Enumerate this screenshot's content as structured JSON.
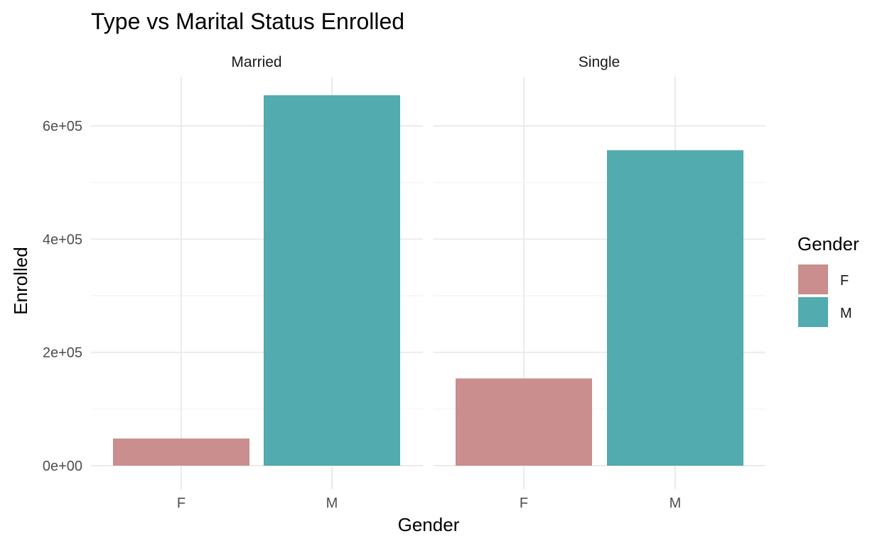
{
  "chart_data": {
    "type": "bar",
    "title": "Type vs Marital Status Enrolled",
    "xlabel": "Gender",
    "ylabel": "Enrolled",
    "categories": [
      "F",
      "M"
    ],
    "facets": [
      {
        "name": "Married",
        "values": [
          48000,
          654000
        ]
      },
      {
        "name": "Single",
        "values": [
          154000,
          557000
        ]
      }
    ],
    "ylim": [
      0,
      654000
    ],
    "y_ticks": [
      {
        "value": 0,
        "label": "0e+00"
      },
      {
        "value": 200000,
        "label": "2e+05"
      },
      {
        "value": 400000,
        "label": "4e+05"
      },
      {
        "value": 600000,
        "label": "6e+05"
      }
    ],
    "y_minor_ticks": [
      100000,
      300000,
      500000
    ],
    "legend": {
      "title": "Gender",
      "position": "right",
      "entries": [
        {
          "label": "F",
          "color": "#C98E8D"
        },
        {
          "label": "M",
          "color": "#51ABAF"
        }
      ]
    },
    "colors": {
      "F": "#C98E8D",
      "M": "#51ABAF"
    },
    "grid": true
  }
}
